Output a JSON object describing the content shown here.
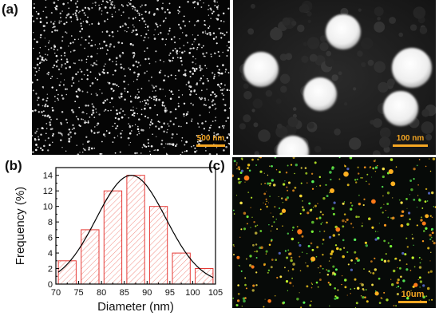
{
  "figure": {
    "panels": {
      "a": {
        "label": "(a)",
        "left_scale": "500 nm",
        "right_scale": "100 nm"
      },
      "b": {
        "label": "(b)"
      },
      "c": {
        "label": "(c)",
        "scale": "10um"
      }
    },
    "colors": {
      "bar_stroke": "#e53935",
      "hatch": "#f28b82",
      "curve": "#000000",
      "scalebar": "#f5a623"
    }
  },
  "chart_data": {
    "type": "bar",
    "title": "",
    "xlabel": "Diameter (nm)",
    "ylabel": "Frequency (%)",
    "xlim": [
      70,
      105
    ],
    "ylim": [
      0,
      15
    ],
    "xticks": [
      70,
      75,
      80,
      85,
      90,
      95,
      100,
      105
    ],
    "yticks": [
      0,
      2,
      4,
      6,
      8,
      10,
      12,
      14
    ],
    "bin_width": 5,
    "categories": [
      72.5,
      77.5,
      82.5,
      87.5,
      92.5,
      97.5,
      102.5
    ],
    "values": [
      3,
      7,
      12,
      14,
      10,
      4,
      2
    ],
    "fit": {
      "type": "gaussian",
      "peak_x": 86.5,
      "peak_y": 14,
      "sigma": 7.6
    },
    "grid": false,
    "legend": "none"
  }
}
